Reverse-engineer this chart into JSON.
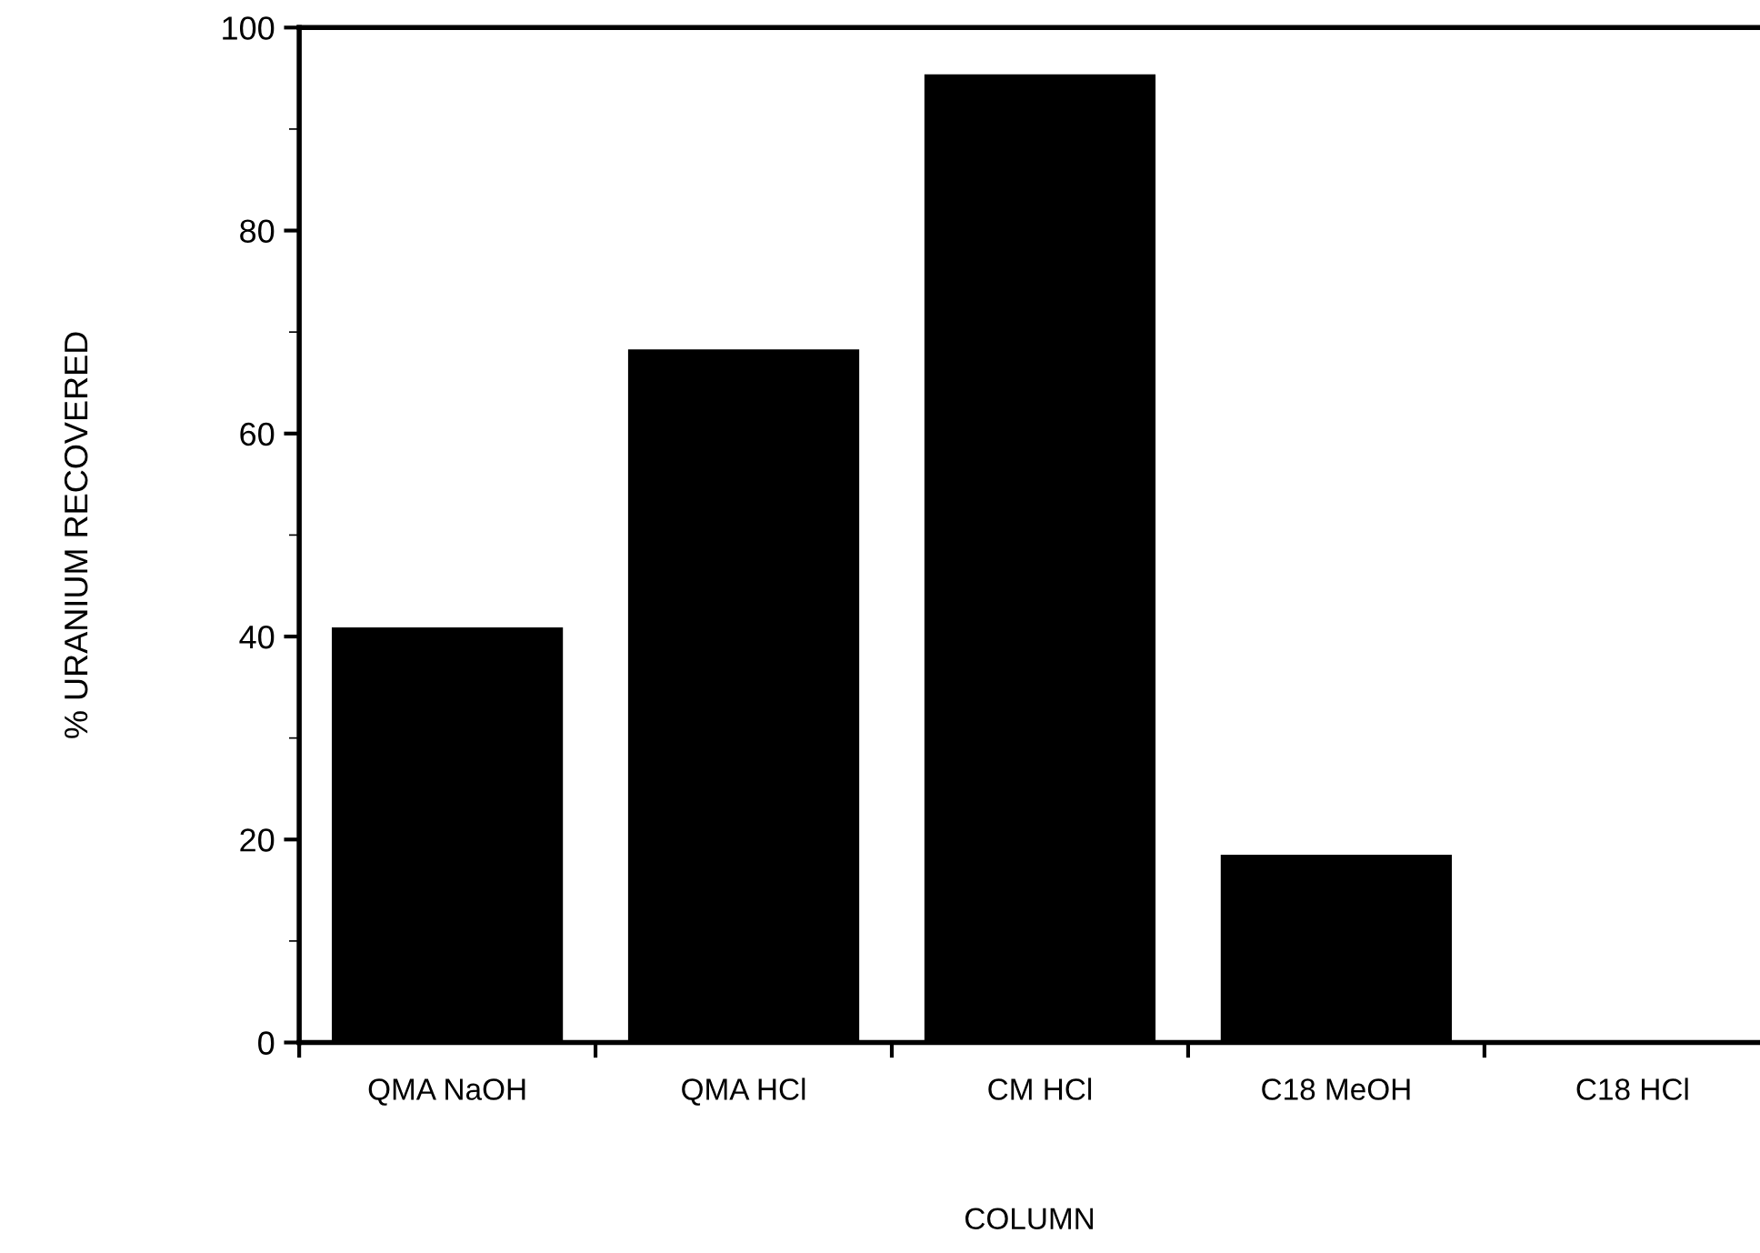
{
  "chart_data": {
    "type": "bar",
    "xlabel": "COLUMN",
    "ylabel": "% URANIUM RECOVERED",
    "categories": [
      "QMA NaOH",
      "QMA HCl",
      "CM HCl",
      "C18 MeOH",
      "C18 HCl"
    ],
    "values": [
      40.9,
      68.3,
      95.4,
      18.5,
      0
    ],
    "color": "#000000",
    "ylim": [
      0,
      100
    ],
    "yticks": [
      0,
      20,
      40,
      60,
      80,
      100
    ],
    "grid": false,
    "legend": false
  }
}
